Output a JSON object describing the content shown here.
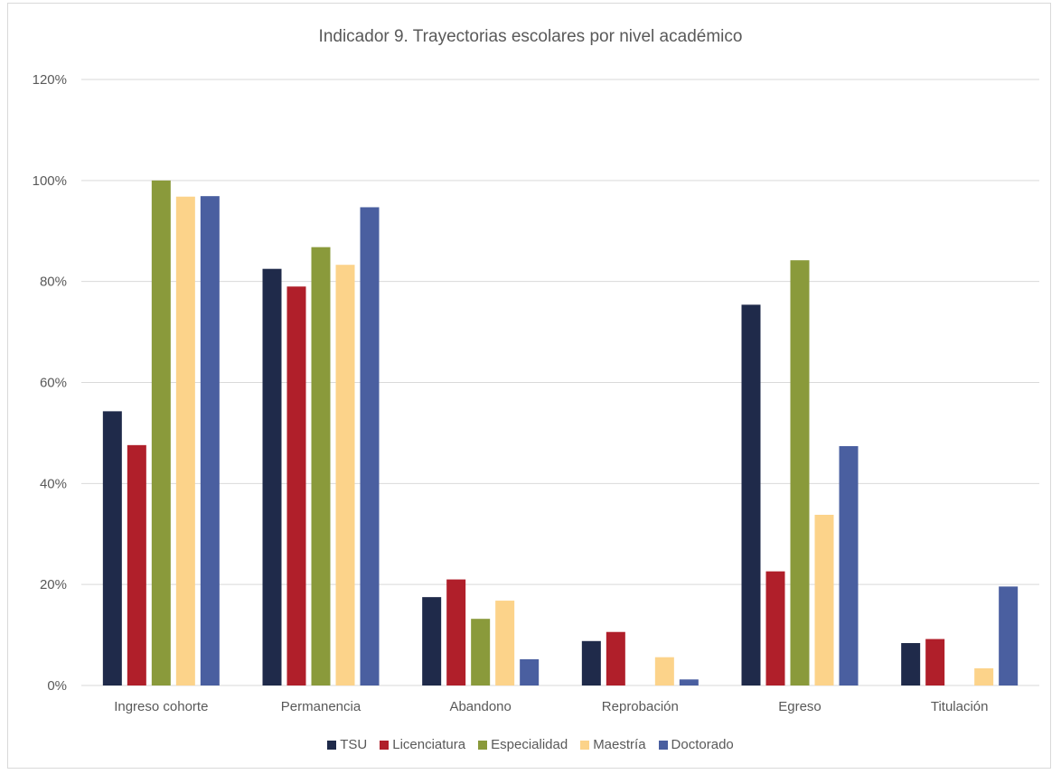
{
  "chart_data": {
    "type": "bar",
    "title": "Indicador 9. Trayectorias escolares por nivel académico",
    "xlabel": "",
    "ylabel": "",
    "ylim": [
      0,
      120
    ],
    "yticks": [
      "0%",
      "20%",
      "40%",
      "60%",
      "80%",
      "100%",
      "120%"
    ],
    "grid": true,
    "legend_position": "bottom",
    "categories": [
      "Ingreso cohorte",
      "Permanencia",
      "Abandono",
      "Reprobación",
      "Egreso",
      "Titulación"
    ],
    "series": [
      {
        "name": "TSU",
        "color": "#1f2a4a",
        "values": [
          54.3,
          82.5,
          17.5,
          8.8,
          75.4,
          8.4
        ]
      },
      {
        "name": "Licenciatura",
        "color": "#b01f2a",
        "values": [
          47.6,
          79.0,
          21.0,
          10.6,
          22.6,
          9.2
        ]
      },
      {
        "name": "Especialidad",
        "color": "#8a9a3b",
        "values": [
          100.0,
          86.8,
          13.2,
          0,
          84.2,
          0
        ]
      },
      {
        "name": "Maestría",
        "color": "#fcd38a",
        "values": [
          96.8,
          83.3,
          16.8,
          5.6,
          33.8,
          3.4
        ]
      },
      {
        "name": "Doctorado",
        "color": "#4a5fa0",
        "values": [
          96.9,
          94.7,
          5.2,
          1.2,
          47.4,
          19.6
        ]
      }
    ]
  }
}
